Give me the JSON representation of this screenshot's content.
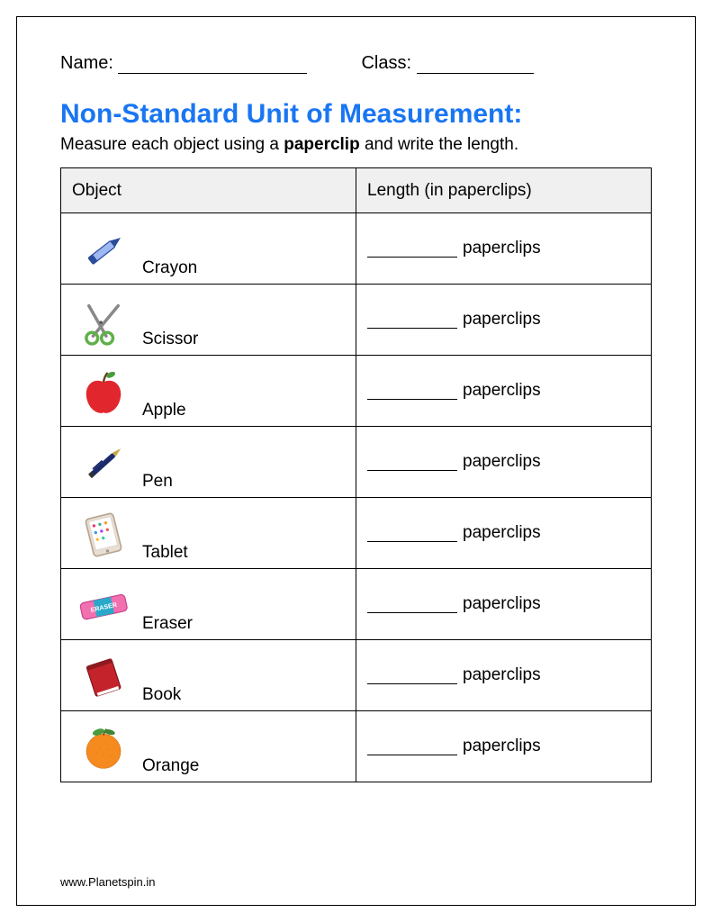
{
  "header": {
    "name_label": "Name:",
    "name_line_width": 210,
    "class_label": "Class:",
    "class_line_width": 130
  },
  "title": "Non-Standard Unit of Measurement:",
  "instruction_pre": "Measure each object using a ",
  "instruction_bold": "paperclip",
  "instruction_post": " and write the length.",
  "columns": {
    "object": "Object",
    "length": "Length (in paperclips)"
  },
  "unit_label": "paperclips",
  "rows": [
    {
      "icon": "crayon",
      "label": "Crayon"
    },
    {
      "icon": "scissor",
      "label": "Scissor"
    },
    {
      "icon": "apple",
      "label": "Apple"
    },
    {
      "icon": "pen",
      "label": "Pen"
    },
    {
      "icon": "tablet",
      "label": "Tablet"
    },
    {
      "icon": "eraser",
      "label": "Eraser"
    },
    {
      "icon": "book",
      "label": "Book"
    },
    {
      "icon": "orange",
      "label": "Orange"
    }
  ],
  "footer": "www.Planetspin.in",
  "colors": {
    "title": "#1976f2",
    "header_bg": "#f0f0f0",
    "border": "#000000"
  }
}
